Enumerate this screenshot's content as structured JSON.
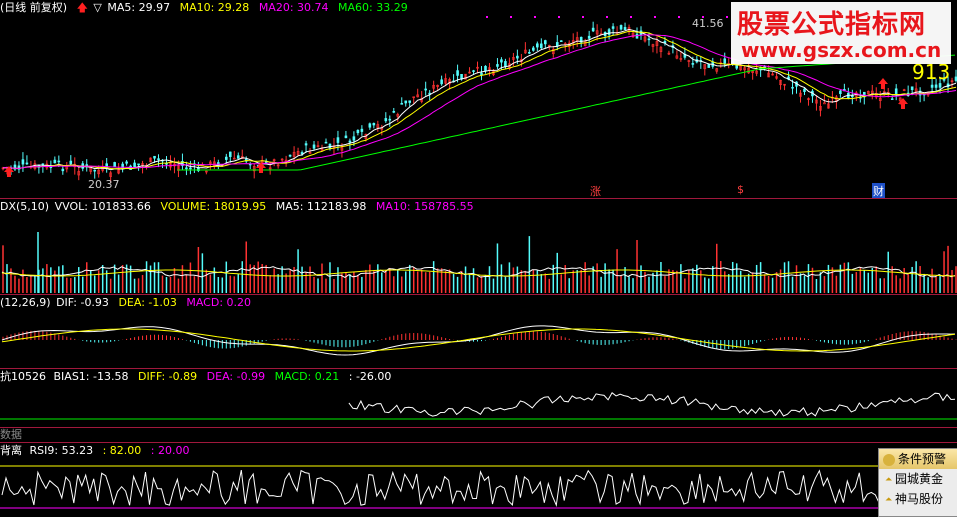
{
  "main_header": {
    "title": "(日线 前复权)",
    "ma5": "MA5: 29.97",
    "ma10": "MA10: 29.28",
    "ma20": "MA20: 30.74",
    "ma60": "MA60: 33.29"
  },
  "main_chart": {
    "high_label": "41.56",
    "low_label": "20.37",
    "current_price": "913",
    "event_labels": [
      "涨",
      "$",
      "财"
    ]
  },
  "watermark": {
    "line1": "股票公式指标网",
    "line2": "www.gszx.com.cn"
  },
  "vol_header": {
    "name": "DX(5,10)",
    "vvol": "VVOL: 101833.66",
    "volume": "VOLUME: 18019.95",
    "ma5": "MA5: 112183.98",
    "ma10": "MA10: 158785.55"
  },
  "macd_header": {
    "name": "(12,26,9)",
    "dif": "DIF: -0.93",
    "dea": "DEA: -1.03",
    "macd": "MACD: 0.20"
  },
  "bias_header": {
    "name": "抗10526",
    "bias1": "BIAS1: -13.58",
    "diff": "DIFF: -0.89",
    "dea": "DEA: -0.99",
    "macd": "MACD: 0.21",
    "extra": ": -26.00"
  },
  "data_pane": {
    "label": "数据"
  },
  "rsi_header": {
    "name": "背离",
    "rsi9": "RSI9: 53.23",
    "v1": ": 82.00",
    "v2": ": 20.00"
  },
  "popup": {
    "title": "条件预警",
    "items": [
      "园城黄金",
      "神马股份"
    ]
  },
  "colors": {
    "ma5": "#ffffff",
    "ma10": "#ffff00",
    "ma20": "#ff00ff",
    "ma60": "#00ff00",
    "up": "#ff3232",
    "down": "#54fcfc",
    "separator": "#a0183c"
  },
  "icons": [
    "up-arrow-icon",
    "down-triangle-icon",
    "gold-coin-icon"
  ]
}
